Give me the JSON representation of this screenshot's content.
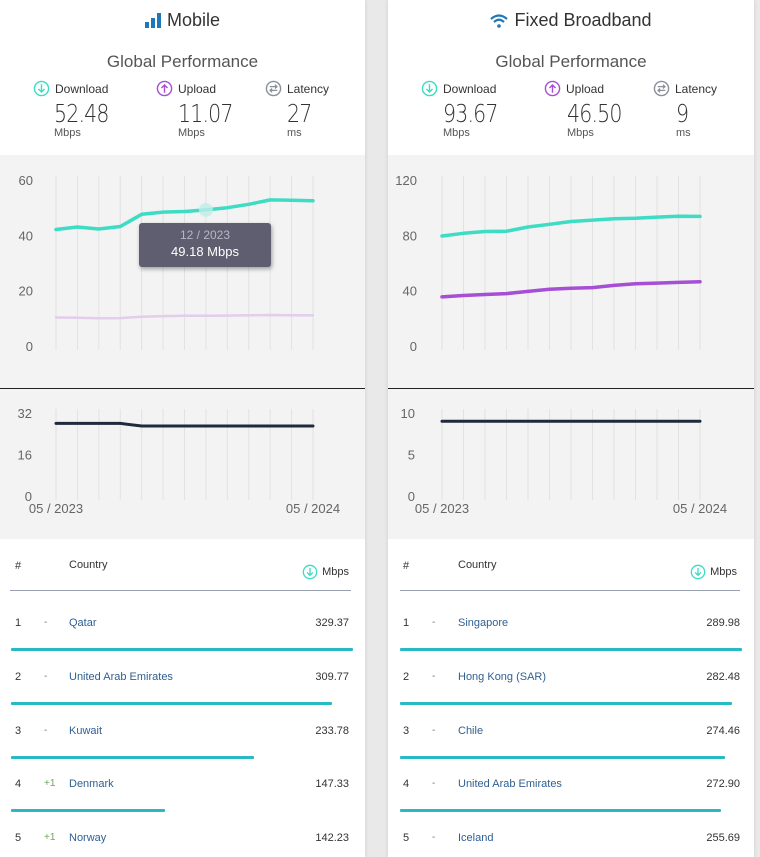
{
  "colors": {
    "download": "#3ddcc4",
    "upload": "#a64fd6",
    "upload_faded": "#e3cdea",
    "latency": "#1f2a3c",
    "bar": "#29b9c4",
    "brand": "#1e77b8"
  },
  "panels": [
    {
      "id": "mobile",
      "title": "Mobile",
      "title_icon": "signal-bars-icon",
      "subtitle": "Global Performance",
      "metrics": [
        {
          "label": "Download",
          "icon": "download-arrow-icon",
          "value": "52.48",
          "unit": "Mbps"
        },
        {
          "label": "Upload",
          "icon": "upload-arrow-icon",
          "value": "11.07",
          "unit": "Mbps"
        },
        {
          "label": "Latency",
          "icon": "latency-icon",
          "value": "27",
          "unit": "ms"
        }
      ],
      "tooltip": {
        "date": "12 / 2023",
        "value": "49.18 Mbps"
      },
      "table": {
        "headers": {
          "rank": "#",
          "country": "Country",
          "mbps": "Mbps"
        },
        "rows": [
          {
            "rank": "1",
            "change": "-",
            "country": "Qatar",
            "mbps": "329.37",
            "bar_fraction": 1.0
          },
          {
            "rank": "2",
            "change": "-",
            "country": "United Arab Emirates",
            "mbps": "309.77",
            "bar_fraction": 0.94
          },
          {
            "rank": "3",
            "change": "-",
            "country": "Kuwait",
            "mbps": "233.78",
            "bar_fraction": 0.71
          },
          {
            "rank": "4",
            "change": "+1",
            "country": "Denmark",
            "mbps": "147.33",
            "bar_fraction": 0.45
          },
          {
            "rank": "5",
            "change": "+1",
            "country": "Norway",
            "mbps": "142.23",
            "bar_fraction": 0.43
          }
        ]
      }
    },
    {
      "id": "fixed",
      "title": "Fixed Broadband",
      "title_icon": "wifi-icon",
      "subtitle": "Global Performance",
      "metrics": [
        {
          "label": "Download",
          "icon": "download-arrow-icon",
          "value": "93.67",
          "unit": "Mbps"
        },
        {
          "label": "Upload",
          "icon": "upload-arrow-icon",
          "value": "46.50",
          "unit": "Mbps"
        },
        {
          "label": "Latency",
          "icon": "latency-icon",
          "value": "9",
          "unit": "ms"
        }
      ],
      "table": {
        "headers": {
          "rank": "#",
          "country": "Country",
          "mbps": "Mbps"
        },
        "rows": [
          {
            "rank": "1",
            "change": "-",
            "country": "Singapore",
            "mbps": "289.98",
            "bar_fraction": 1.0
          },
          {
            "rank": "2",
            "change": "-",
            "country": "Hong Kong (SAR)",
            "mbps": "282.48",
            "bar_fraction": 0.97
          },
          {
            "rank": "3",
            "change": "-",
            "country": "Chile",
            "mbps": "274.46",
            "bar_fraction": 0.95
          },
          {
            "rank": "4",
            "change": "-",
            "country": "United Arab Emirates",
            "mbps": "272.90",
            "bar_fraction": 0.94
          },
          {
            "rank": "5",
            "change": "-",
            "country": "Iceland",
            "mbps": "255.69",
            "bar_fraction": 0.88
          }
        ]
      }
    }
  ],
  "chart_data": [
    {
      "type": "line",
      "panel": "mobile",
      "x": [
        "05 / 2023",
        "06 / 2023",
        "07 / 2023",
        "08 / 2023",
        "09 / 2023",
        "10 / 2023",
        "11 / 2023",
        "12 / 2023",
        "01 / 2024",
        "02 / 2024",
        "03 / 2024",
        "04 / 2024",
        "05 / 2024"
      ],
      "x_tick_labels": [
        "05 / 2023",
        "05 / 2024"
      ],
      "series": [
        {
          "name": "Download",
          "values": [
            42.1,
            43.0,
            42.3,
            43.2,
            47.6,
            48.4,
            48.6,
            49.18,
            50.0,
            51.2,
            52.8,
            52.7,
            52.48
          ]
        },
        {
          "name": "Upload",
          "values": [
            10.3,
            10.2,
            10.0,
            10.1,
            10.6,
            10.8,
            10.9,
            10.9,
            11.0,
            11.1,
            11.2,
            11.1,
            11.07
          ]
        }
      ],
      "ylim": [
        0,
        60
      ],
      "yticks": [
        0,
        20,
        40,
        60
      ],
      "grid": true
    },
    {
      "type": "line",
      "panel": "mobile",
      "x": [
        "05 / 2023",
        "06 / 2023",
        "07 / 2023",
        "08 / 2023",
        "09 / 2023",
        "10 / 2023",
        "11 / 2023",
        "12 / 2023",
        "01 / 2024",
        "02 / 2024",
        "03 / 2024",
        "04 / 2024",
        "05 / 2024"
      ],
      "x_tick_labels": [
        "05 / 2023",
        "05 / 2024"
      ],
      "series": [
        {
          "name": "Latency",
          "values": [
            28,
            28,
            28,
            28,
            27,
            27,
            27,
            27,
            27,
            27,
            27,
            27,
            27
          ]
        }
      ],
      "ylim": [
        0,
        32
      ],
      "yticks": [
        0,
        16,
        32
      ],
      "grid": true
    },
    {
      "type": "line",
      "panel": "fixed",
      "x": [
        "05 / 2023",
        "06 / 2023",
        "07 / 2023",
        "08 / 2023",
        "09 / 2023",
        "10 / 2023",
        "11 / 2023",
        "12 / 2023",
        "01 / 2024",
        "02 / 2024",
        "03 / 2024",
        "04 / 2024",
        "05 / 2024"
      ],
      "x_tick_labels": [
        "05 / 2023",
        "05 / 2024"
      ],
      "series": [
        {
          "name": "Download",
          "values": [
            79.5,
            81.5,
            82.8,
            83.0,
            86.0,
            88.0,
            90.0,
            91.0,
            92.0,
            92.3,
            93.2,
            93.8,
            93.67
          ]
        },
        {
          "name": "Upload",
          "values": [
            35.5,
            36.5,
            37.2,
            37.9,
            39.5,
            41.0,
            41.8,
            42.2,
            43.8,
            45.0,
            45.5,
            46.0,
            46.5
          ]
        }
      ],
      "ylim": [
        0,
        120
      ],
      "yticks": [
        0,
        40,
        80,
        120
      ],
      "grid": true
    },
    {
      "type": "line",
      "panel": "fixed",
      "x": [
        "05 / 2023",
        "06 / 2023",
        "07 / 2023",
        "08 / 2023",
        "09 / 2023",
        "10 / 2023",
        "11 / 2023",
        "12 / 2023",
        "01 / 2024",
        "02 / 2024",
        "03 / 2024",
        "04 / 2024",
        "05 / 2024"
      ],
      "x_tick_labels": [
        "05 / 2023",
        "05 / 2024"
      ],
      "series": [
        {
          "name": "Latency",
          "values": [
            9,
            9,
            9,
            9,
            9,
            9,
            9,
            9,
            9,
            9,
            9,
            9,
            9
          ]
        }
      ],
      "ylim": [
        0,
        10
      ],
      "yticks": [
        0,
        5,
        10
      ],
      "grid": true
    }
  ]
}
